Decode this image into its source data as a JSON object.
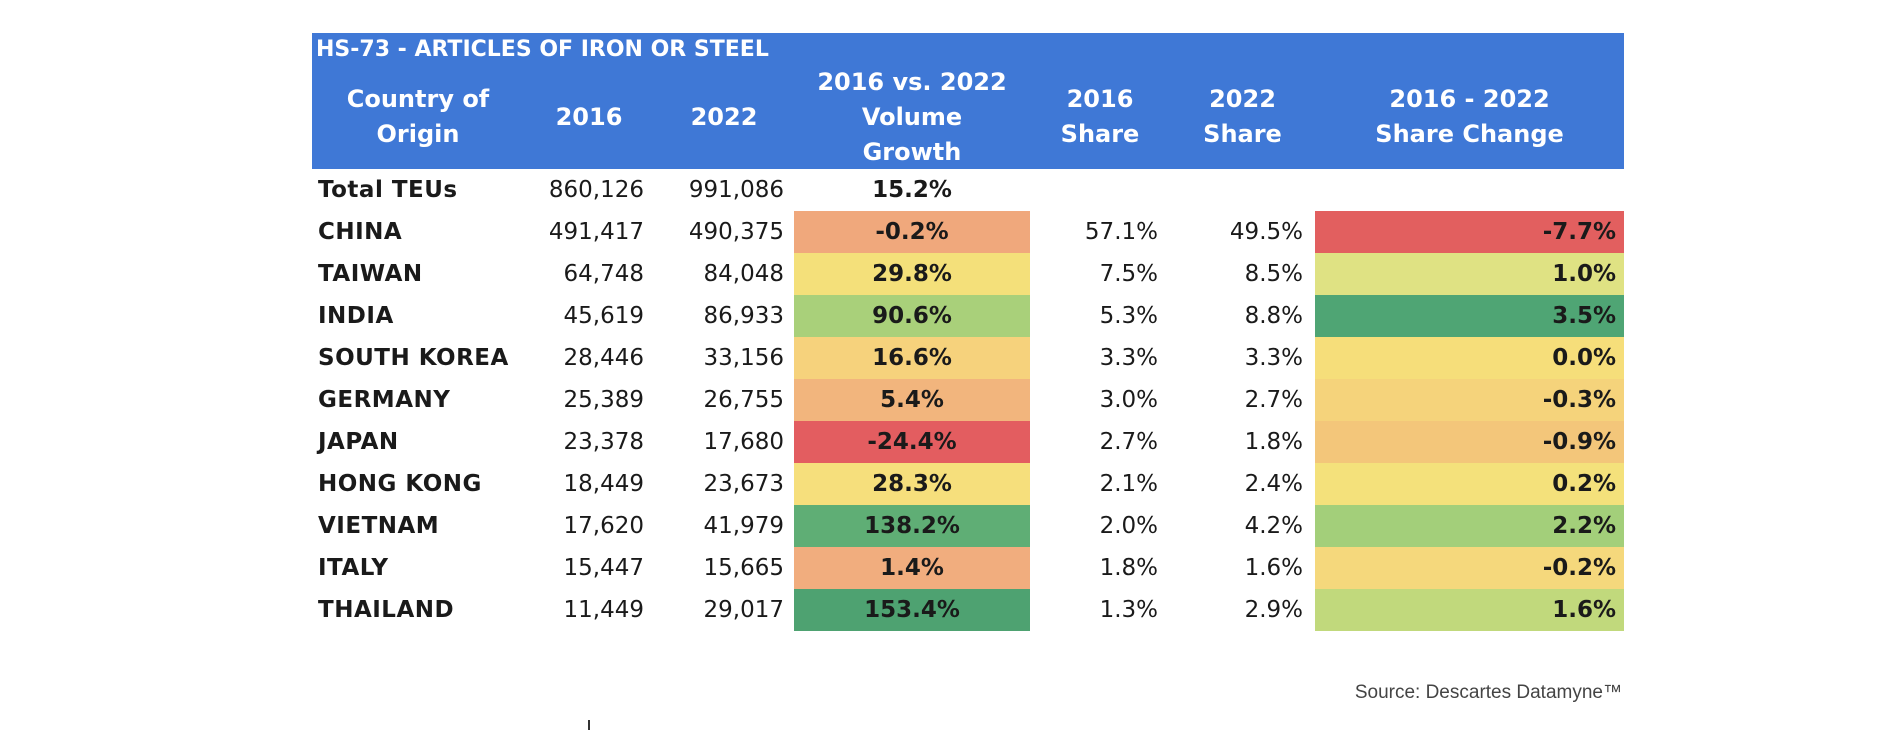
{
  "chart_data": {
    "type": "table",
    "title": "HS-73 - ARTICLES OF IRON OR STEEL",
    "columns": [
      "Country of Origin",
      "2016",
      "2022",
      "2016 vs. 2022 Volume Growth",
      "2016 Share",
      "2022 Share",
      "2016 - 2022 Share Change"
    ],
    "total": {
      "label": "Total TEUs",
      "v2016": "860,126",
      "v2022": "991,086",
      "growth": "15.2%"
    },
    "rows": [
      {
        "country": "CHINA",
        "v2016": "491,417",
        "v2022": "490,375",
        "growth": "-0.2%",
        "share2016": "57.1%",
        "share2022": "49.5%",
        "change": "-7.7%",
        "growth_color": "#f0a87c",
        "change_color": "#e25f5f"
      },
      {
        "country": "TAIWAN",
        "v2016": "64,748",
        "v2022": "84,048",
        "growth": "29.8%",
        "share2016": "7.5%",
        "share2022": "8.5%",
        "change": "1.0%",
        "growth_color": "#f4e07a",
        "change_color": "#dfe283"
      },
      {
        "country": "INDIA",
        "v2016": "45,619",
        "v2022": "86,933",
        "growth": "90.6%",
        "share2016": "5.3%",
        "share2022": "8.8%",
        "change": "3.5%",
        "growth_color": "#a9d07a",
        "change_color": "#4fa574"
      },
      {
        "country": "SOUTH KOREA",
        "v2016": "28,446",
        "v2022": "33,156",
        "growth": "16.6%",
        "share2016": "3.3%",
        "share2022": "3.3%",
        "change": "0.0%",
        "growth_color": "#f6d27c",
        "change_color": "#f6de7a"
      },
      {
        "country": "GERMANY",
        "v2016": "25,389",
        "v2022": "26,755",
        "growth": "5.4%",
        "share2016": "3.0%",
        "share2022": "2.7%",
        "change": "-0.3%",
        "growth_color": "#f2b57d",
        "change_color": "#f5d37b"
      },
      {
        "country": "JAPAN",
        "v2016": "23,378",
        "v2022": "17,680",
        "growth": "-24.4%",
        "share2016": "2.7%",
        "share2022": "1.8%",
        "change": "-0.9%",
        "growth_color": "#e35d60",
        "change_color": "#f3c67a"
      },
      {
        "country": "HONG KONG",
        "v2016": "18,449",
        "v2022": "23,673",
        "growth": "28.3%",
        "share2016": "2.1%",
        "share2022": "2.4%",
        "change": "0.2%",
        "growth_color": "#f6df7c",
        "change_color": "#f4e17b"
      },
      {
        "country": "VIETNAM",
        "v2016": "17,620",
        "v2022": "41,979",
        "growth": "138.2%",
        "share2016": "2.0%",
        "share2022": "4.2%",
        "change": "2.2%",
        "growth_color": "#5fae75",
        "change_color": "#a3cf7a"
      },
      {
        "country": "ITALY",
        "v2016": "15,447",
        "v2022": "15,665",
        "growth": "1.4%",
        "share2016": "1.8%",
        "share2022": "1.6%",
        "change": "-0.2%",
        "growth_color": "#f1ad7e",
        "change_color": "#f5d87c"
      },
      {
        "country": "THAILAND",
        "v2016": "11,449",
        "v2022": "29,017",
        "growth": "153.4%",
        "share2016": "1.3%",
        "share2022": "2.9%",
        "change": "1.6%",
        "growth_color": "#4ea271",
        "change_color": "#c1d97c"
      }
    ],
    "source": "Source: Descartes Datamyne™"
  },
  "colors": {
    "header": "#3f78d6",
    "header_text": "#ffffff"
  }
}
